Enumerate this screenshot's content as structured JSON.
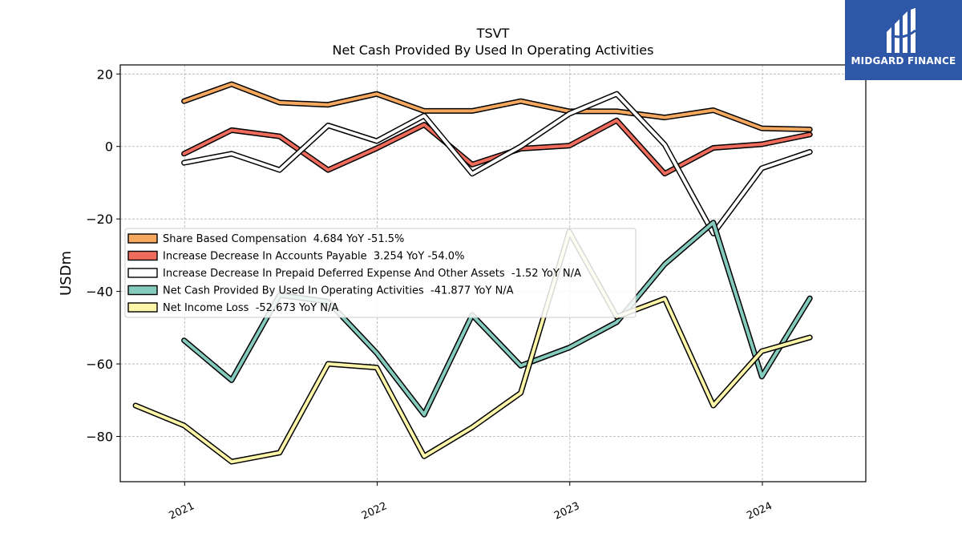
{
  "logo": {
    "text": "MIDGARD FINANCE",
    "icon": "midgard-logo-icon",
    "background": "#2f57a8"
  },
  "chart_data": {
    "type": "line",
    "title": "TSVT",
    "subtitle": "Net Cash Provided By Used In Operating Activities",
    "xlabel": "",
    "ylabel": "USDm",
    "ylim": [
      -92.5,
      22.5
    ],
    "xlim": [
      "2020-09-01",
      "2024-07-15"
    ],
    "x_ticks": [
      "2021",
      "2022",
      "2023",
      "2024"
    ],
    "y_ticks": [
      20,
      0,
      -20,
      -40,
      -60,
      -80
    ],
    "y_tick_labels": [
      "20",
      "0",
      "−20",
      "−40",
      "−60",
      "−80"
    ],
    "grid": true,
    "legend_position": "center-left",
    "series": [
      {
        "name": "Share Based Compensation",
        "legend": "Share Based Compensation  4.684 YoY -51.5%",
        "color": "#f6a95e",
        "dates": [
          "2020-12-31",
          "2021-03-31",
          "2021-06-30",
          "2021-09-30",
          "2021-12-31",
          "2022-03-31",
          "2022-06-30",
          "2022-09-30",
          "2022-12-31",
          "2023-03-31",
          "2023-06-30",
          "2023-09-30",
          "2023-12-31",
          "2024-03-31"
        ],
        "values": [
          12.5,
          17.2,
          12.1,
          11.5,
          14.5,
          9.8,
          9.8,
          12.5,
          9.7,
          9.7,
          8.0,
          10.0,
          5.0,
          4.7
        ]
      },
      {
        "name": "Increase Decrease In Accounts Payable",
        "legend": "Increase Decrease In Accounts Payable  3.254 YoY -54.0%",
        "color": "#ef6b5b",
        "dates": [
          "2020-12-31",
          "2021-03-31",
          "2021-06-30",
          "2021-09-30",
          "2021-12-31",
          "2022-03-31",
          "2022-06-30",
          "2022-09-30",
          "2022-12-31",
          "2023-03-31",
          "2023-06-30",
          "2023-09-30",
          "2023-12-31",
          "2024-03-31"
        ],
        "values": [
          -2.0,
          4.5,
          2.8,
          -6.5,
          -0.5,
          6.0,
          -5.0,
          -0.6,
          0.2,
          7.2,
          -7.5,
          -0.4,
          0.6,
          3.3
        ]
      },
      {
        "name": "Increase Decrease In Prepaid Deferred Expense And Other Assets",
        "legend": "Increase Decrease In Prepaid Deferred Expense And Other Assets  -1.52 YoY N/A",
        "color": "#ffffff",
        "dates": [
          "2020-12-31",
          "2021-03-31",
          "2021-06-30",
          "2021-09-30",
          "2021-12-31",
          "2022-03-31",
          "2022-06-30",
          "2022-09-30",
          "2022-12-31",
          "2023-03-31",
          "2023-06-30",
          "2023-09-30",
          "2023-12-31",
          "2024-03-31"
        ],
        "values": [
          -4.5,
          -2.0,
          -6.5,
          5.8,
          1.5,
          8.5,
          -7.5,
          0.0,
          9.0,
          14.5,
          0.5,
          -24.0,
          -6.0,
          -1.5
        ]
      },
      {
        "name": "Net Cash Provided By Used In Operating Activities",
        "legend": "Net Cash Provided By Used In Operating Activities  -41.877 YoY N/A",
        "color": "#85cbbd",
        "dates": [
          "2020-12-31",
          "2021-03-31",
          "2021-06-30",
          "2021-09-30",
          "2021-12-31",
          "2022-03-31",
          "2022-06-30",
          "2022-09-30",
          "2022-12-31",
          "2023-03-31",
          "2023-06-30",
          "2023-09-30",
          "2023-12-31",
          "2024-03-31"
        ],
        "values": [
          -53.5,
          -64.5,
          -41.0,
          -42.8,
          -57.0,
          -74.0,
          -46.5,
          -60.5,
          -55.5,
          -48.5,
          -32.5,
          -21.0,
          -63.5,
          -41.9
        ]
      },
      {
        "name": "Net Income Loss",
        "legend": "Net Income Loss  -52.673 YoY N/A",
        "color": "#fdf6a8",
        "dates": [
          "2020-09-30",
          "2020-12-31",
          "2021-03-31",
          "2021-06-30",
          "2021-09-30",
          "2021-12-31",
          "2022-03-31",
          "2022-06-30",
          "2022-09-30",
          "2022-12-31",
          "2023-03-31",
          "2023-06-30",
          "2023-09-30",
          "2023-12-31",
          "2024-03-31"
        ],
        "values": [
          -71.5,
          -77.0,
          -87.0,
          -84.5,
          -60.0,
          -61.0,
          -85.5,
          -77.5,
          -68.0,
          -23.5,
          -47.0,
          -42.0,
          -71.5,
          -56.5,
          -52.7
        ]
      }
    ]
  }
}
